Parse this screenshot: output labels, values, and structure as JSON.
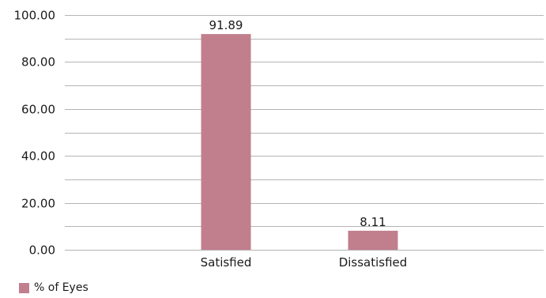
{
  "chart_data": {
    "type": "bar",
    "categories": [
      "Satisfied",
      "Dissatisfied"
    ],
    "series": [
      {
        "name": "% of Eyes",
        "values": [
          91.89,
          8.11
        ],
        "data_labels": [
          "91.89",
          "8.11"
        ],
        "color": "#c17f8e"
      }
    ],
    "ylim": [
      0,
      100
    ],
    "y_ticks": [
      0,
      20,
      40,
      60,
      80,
      100
    ],
    "y_tick_labels": [
      "0.00",
      "20.00",
      "40.00",
      "60.00",
      "80.00",
      "100.00"
    ],
    "y_minor_gridlines": [
      10,
      30,
      50,
      70,
      90
    ],
    "grid": true,
    "legend_position": "bottom-left",
    "title": "",
    "xlabel": "",
    "ylabel": ""
  },
  "colors": {
    "bar": "#c17f8e",
    "gridline": "#b5b5b5",
    "text": "#1a1a1a"
  }
}
